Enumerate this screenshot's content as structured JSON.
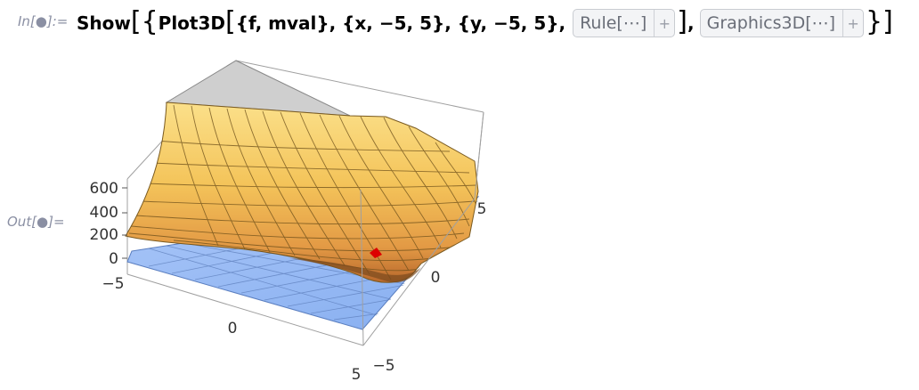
{
  "cell": {
    "in_label": "In[●]:=",
    "out_label": "Out[●]="
  },
  "input": {
    "show": "Show",
    "open": "[{",
    "plot3d": "Plot3D",
    "plot_args": "{f, mval}, {x, −5, 5}, {y, −5, 5},",
    "rule_chip": "Rule[⋯]",
    "chip_plus": "+",
    "graphics_chip": "Graphics3D[⋯]",
    "close": "}]",
    "comma": ","
  },
  "plot": {
    "z_ticks": [
      "600",
      "400",
      "200",
      "0"
    ],
    "x_ticks": [
      "−5",
      "0",
      "5"
    ],
    "y_ticks": [
      "5",
      "0",
      "−5"
    ],
    "colors": {
      "surface": "#f4c45a",
      "surface_light": "#fbe08a",
      "surface_dark": "#c8732f",
      "plane": "#93b8f4",
      "point": "#dd0000",
      "box": "#9a9a9a"
    }
  }
}
